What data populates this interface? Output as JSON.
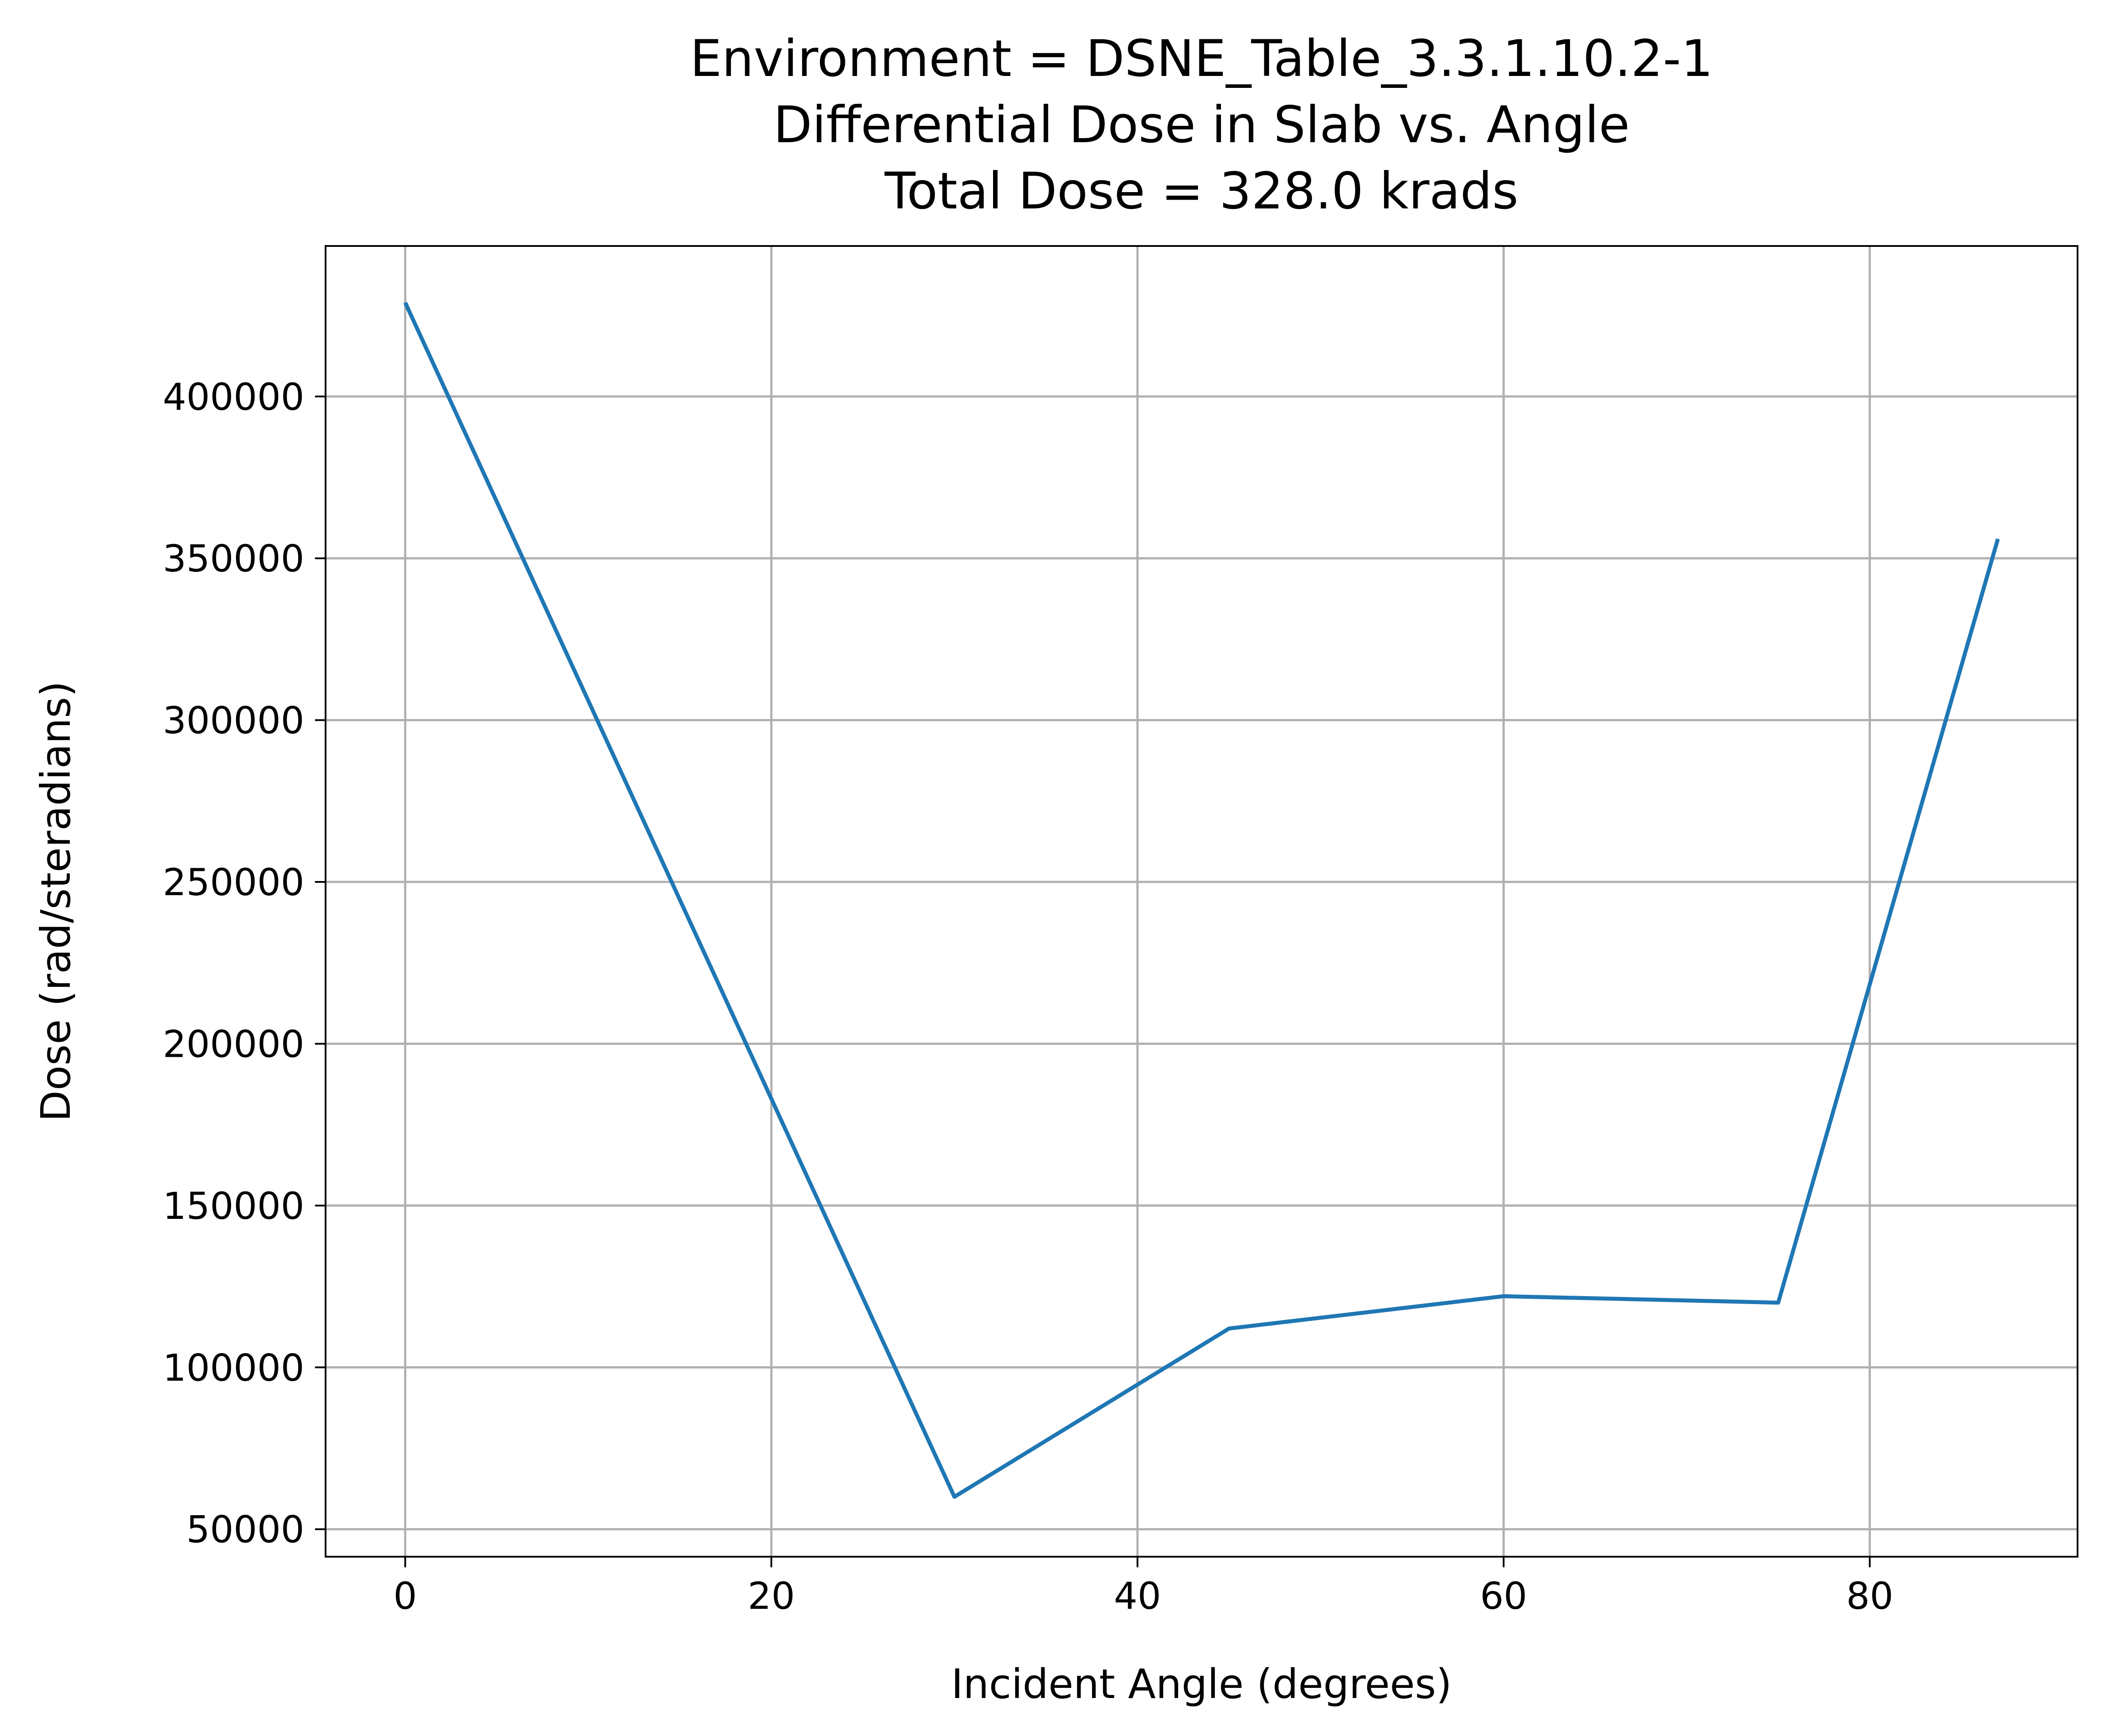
{
  "chart_data": {
    "type": "line",
    "title": [
      "Environment = DSNE_Table_3.3.1.10.2-1",
      "Differential Dose in Slab vs. Angle",
      "Total Dose = 328.0 krads"
    ],
    "xlabel": "Incident Angle (degrees)",
    "ylabel": "Dose (rad/steradians)",
    "xlim": [
      -4.35,
      91.35
    ],
    "ylim": [
      41500,
      446500
    ],
    "xticks": [
      0,
      20,
      40,
      60,
      80
    ],
    "yticks": [
      50000,
      100000,
      150000,
      200000,
      250000,
      300000,
      350000,
      400000
    ],
    "grid": true,
    "legend": "none",
    "series": [
      {
        "color": "#1f77b4",
        "x": [
          0,
          30,
          45,
          60,
          75,
          87
        ],
        "y": [
          429000,
          60000,
          112000,
          122000,
          120000,
          356000
        ]
      }
    ]
  }
}
